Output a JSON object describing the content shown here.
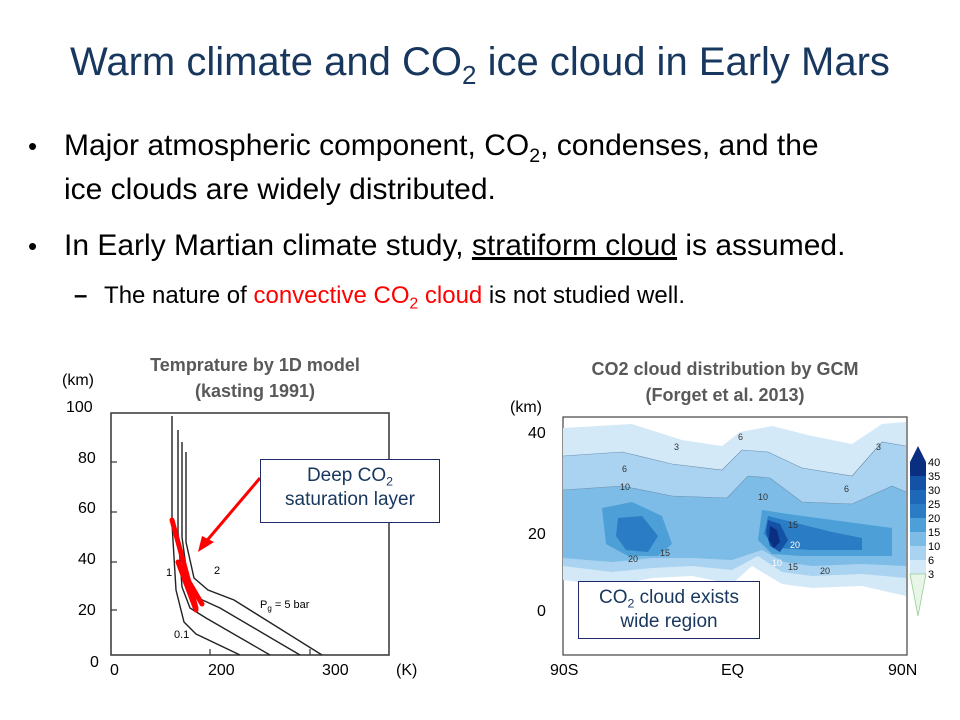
{
  "slide": {
    "title_main": "Warm climate and CO",
    "title_sub": "2",
    "title_rest": " ice cloud in Early Mars",
    "bullets": [
      {
        "line1_a": "Major atmospheric component, CO",
        "line1_sub": "2",
        "line1_b": ", condenses, and the",
        "line2": "ice clouds are widely distributed."
      },
      {
        "text_a": "In Early Martian climate study, ",
        "text_u": "stratiform cloud",
        "text_b": " is assumed."
      }
    ],
    "subbullet": {
      "dash": "–",
      "a": "The nature of ",
      "red_a": "convective CO",
      "red_sub": "2",
      "red_b": " cloud",
      "b": " is not studied well."
    }
  },
  "left_figure": {
    "title_line1": "Temprature by 1D model",
    "title_line2": "(kasting 1991)",
    "y_unit": "(km)",
    "y_ticks": [
      "100",
      "80",
      "60",
      "40",
      "20",
      "0"
    ],
    "x_ticks": [
      "0",
      "200",
      "300"
    ],
    "x_unit": "(K)",
    "curve_labels": [
      "1",
      "2",
      "0.1"
    ],
    "pressure_label": "P",
    "pressure_sub": "g",
    "pressure_value": " = 5 bar",
    "callout_a": "Deep CO",
    "callout_sub": "2",
    "callout_b": "saturation layer",
    "highlight_color": "#ff0000"
  },
  "right_figure": {
    "title_line1": "CO2 cloud distribution by GCM",
    "title_line2": "(Forget et al. 2013)",
    "y_unit": "(km)",
    "y_ticks": [
      "40",
      "20",
      "0"
    ],
    "x_ticks": [
      "90S",
      "EQ",
      "90N"
    ],
    "colorbar_labels": [
      "40",
      "35",
      "30",
      "25",
      "20",
      "15",
      "10",
      "6",
      "3"
    ],
    "contour_labels": [
      "3",
      "6",
      "10",
      "20",
      "15",
      "6",
      "10",
      "15",
      "20",
      "6",
      "3",
      "20",
      "15",
      "10"
    ],
    "callout_a": "CO",
    "callout_sub": "2",
    "callout_b": " cloud exists",
    "callout_line2": "wide region"
  }
}
